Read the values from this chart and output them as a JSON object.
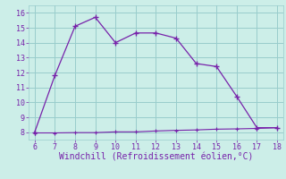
{
  "x": [
    6,
    7,
    8,
    9,
    10,
    11,
    12,
    13,
    14,
    15,
    16,
    17,
    18
  ],
  "y_main": [
    8.0,
    11.8,
    15.1,
    15.7,
    14.0,
    14.65,
    14.65,
    14.3,
    12.6,
    12.4,
    10.4,
    8.3,
    8.3
  ],
  "x_flat": [
    6,
    7,
    8,
    9,
    10,
    11,
    12,
    13,
    14,
    15,
    16,
    17,
    18
  ],
  "y_flat": [
    7.95,
    7.95,
    7.97,
    7.97,
    8.02,
    8.02,
    8.08,
    8.12,
    8.15,
    8.2,
    8.22,
    8.25,
    8.3
  ],
  "line_color": "#7722aa",
  "bg_color": "#cceee8",
  "grid_color": "#99cccc",
  "xlabel": "Windchill (Refroidissement éolien,°C)",
  "xlim": [
    5.7,
    18.3
  ],
  "ylim": [
    7.5,
    16.5
  ],
  "xticks": [
    6,
    7,
    8,
    9,
    10,
    11,
    12,
    13,
    14,
    15,
    16,
    17,
    18
  ],
  "yticks": [
    8,
    9,
    10,
    11,
    12,
    13,
    14,
    15,
    16
  ],
  "xlabel_fontsize": 7.0
}
